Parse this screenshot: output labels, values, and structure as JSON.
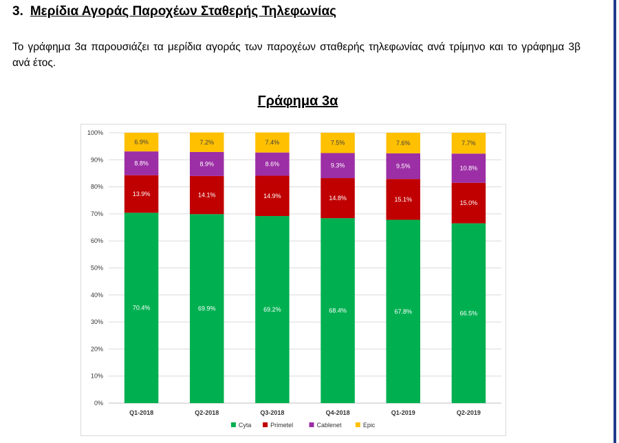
{
  "heading": {
    "number": "3.",
    "title": "Μερίδια Αγοράς Παροχέων Σταθερής Τηλεφωνίας"
  },
  "intro": "Το γράφημα 3α παρουσιάζει τα μερίδια αγοράς των παροχέων σταθερής τηλεφωνίας ανά τρίμηνο και το γράφημα 3β ανά έτος.",
  "chart_data": {
    "type": "bar",
    "stacked": true,
    "title": "Γράφημα 3α",
    "xlabel": "",
    "ylabel": "",
    "ylim": [
      0,
      100
    ],
    "y_ticks": [
      "0%",
      "10%",
      "20%",
      "30%",
      "40%",
      "50%",
      "60%",
      "70%",
      "80%",
      "90%",
      "100%"
    ],
    "grid": true,
    "legend_position": "bottom",
    "categories": [
      "Q1-2018",
      "Q2-2018",
      "Q3-2018",
      "Q4-2018",
      "Q1-2019",
      "Q2-2019"
    ],
    "series": [
      {
        "name": "Cyta",
        "color": "#00b050",
        "values": [
          70.4,
          69.9,
          69.2,
          68.4,
          67.8,
          66.5
        ],
        "labels": [
          "70.4%",
          "69.9%",
          "69.2%",
          "68.4%",
          "67.8%",
          "66.5%"
        ]
      },
      {
        "name": "Primetel",
        "color": "#c00000",
        "values": [
          13.9,
          14.1,
          14.9,
          14.8,
          15.1,
          15.0
        ],
        "labels": [
          "13.9%",
          "14.1%",
          "14.9%",
          "14.8%",
          "15.1%",
          "15.0%"
        ]
      },
      {
        "name": "Cablenet",
        "color": "#9c2fa5",
        "values": [
          8.8,
          8.9,
          8.6,
          9.3,
          9.5,
          10.8
        ],
        "labels": [
          "8.8%",
          "8.9%",
          "8.6%",
          "9.3%",
          "9.5%",
          "10.8%"
        ]
      },
      {
        "name": "Epic",
        "color": "#ffc000",
        "values": [
          6.9,
          7.2,
          7.4,
          7.5,
          7.6,
          7.7
        ],
        "labels": [
          "6.9%",
          "7.2%",
          "7.4%",
          "7.5%",
          "7.6%",
          "7.7%"
        ]
      }
    ]
  }
}
